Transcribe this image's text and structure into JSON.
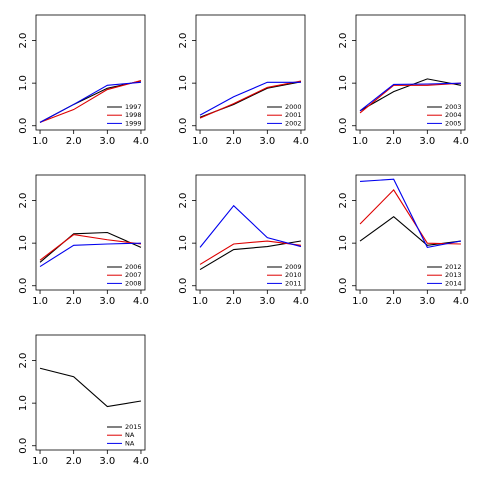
{
  "chart_data": [
    {
      "type": "line",
      "x": [
        1,
        2,
        3,
        4
      ],
      "xlim": [
        0.88,
        4.12
      ],
      "ylim": [
        -0.1,
        2.6
      ],
      "xticks": [
        {
          "value": 1,
          "label": "1.0"
        },
        {
          "value": 2,
          "label": "2.0"
        },
        {
          "value": 3,
          "label": "3.0"
        },
        {
          "value": 4,
          "label": "4.0"
        }
      ],
      "yticks": [
        {
          "value": 0,
          "label": "0.0"
        },
        {
          "value": 1,
          "label": "1.0"
        },
        {
          "value": 2,
          "label": "2.0"
        }
      ],
      "legend": "lower right",
      "series": [
        {
          "name": "1997",
          "color": "#000000",
          "values": [
            0.08,
            0.5,
            0.88,
            1.05
          ]
        },
        {
          "name": "1998",
          "color": "#dd0000",
          "values": [
            0.08,
            0.38,
            0.85,
            1.06
          ]
        },
        {
          "name": "1999",
          "color": "#0000ee",
          "values": [
            0.08,
            0.5,
            0.95,
            1.02
          ]
        }
      ]
    },
    {
      "type": "line",
      "x": [
        1,
        2,
        3,
        4
      ],
      "xlim": [
        0.88,
        4.12
      ],
      "ylim": [
        -0.1,
        2.6
      ],
      "xticks": [
        {
          "value": 1,
          "label": "1.0"
        },
        {
          "value": 2,
          "label": "2.0"
        },
        {
          "value": 3,
          "label": "3.0"
        },
        {
          "value": 4,
          "label": "4.0"
        }
      ],
      "yticks": [
        {
          "value": 0,
          "label": "0.0"
        },
        {
          "value": 1,
          "label": "1.0"
        },
        {
          "value": 2,
          "label": "2.0"
        }
      ],
      "legend": "lower right",
      "series": [
        {
          "name": "2000",
          "color": "#000000",
          "values": [
            0.2,
            0.5,
            0.88,
            1.03
          ]
        },
        {
          "name": "2001",
          "color": "#dd0000",
          "values": [
            0.18,
            0.52,
            0.9,
            1.05
          ]
        },
        {
          "name": "2002",
          "color": "#0000ee",
          "values": [
            0.25,
            0.68,
            1.02,
            1.02
          ]
        }
      ]
    },
    {
      "type": "line",
      "x": [
        1,
        2,
        3,
        4
      ],
      "xlim": [
        0.88,
        4.12
      ],
      "ylim": [
        -0.1,
        2.6
      ],
      "xticks": [
        {
          "value": 1,
          "label": "1.0"
        },
        {
          "value": 2,
          "label": "2.0"
        },
        {
          "value": 3,
          "label": "3.0"
        },
        {
          "value": 4,
          "label": "4.0"
        }
      ],
      "yticks": [
        {
          "value": 0,
          "label": "0.0"
        },
        {
          "value": 1,
          "label": "1.0"
        },
        {
          "value": 2,
          "label": "2.0"
        }
      ],
      "legend": "lower right",
      "series": [
        {
          "name": "2003",
          "color": "#000000",
          "values": [
            0.35,
            0.8,
            1.1,
            0.95
          ]
        },
        {
          "name": "2004",
          "color": "#dd0000",
          "values": [
            0.3,
            0.95,
            0.95,
            1.0
          ]
        },
        {
          "name": "2005",
          "color": "#0000ee",
          "values": [
            0.35,
            0.97,
            0.98,
            1.0
          ]
        }
      ]
    },
    {
      "type": "line",
      "x": [
        1,
        2,
        3,
        4
      ],
      "xlim": [
        0.88,
        4.12
      ],
      "ylim": [
        -0.1,
        2.6
      ],
      "xticks": [
        {
          "value": 1,
          "label": "1.0"
        },
        {
          "value": 2,
          "label": "2.0"
        },
        {
          "value": 3,
          "label": "3.0"
        },
        {
          "value": 4,
          "label": "4.0"
        }
      ],
      "yticks": [
        {
          "value": 0,
          "label": "0.0"
        },
        {
          "value": 1,
          "label": "1.0"
        },
        {
          "value": 2,
          "label": "2.0"
        }
      ],
      "legend": "lower right",
      "series": [
        {
          "name": "2006",
          "color": "#000000",
          "values": [
            0.55,
            1.22,
            1.25,
            0.9
          ]
        },
        {
          "name": "2007",
          "color": "#dd0000",
          "values": [
            0.6,
            1.2,
            1.08,
            0.98
          ]
        },
        {
          "name": "2008",
          "color": "#0000ee",
          "values": [
            0.45,
            0.95,
            0.98,
            1.0
          ]
        }
      ]
    },
    {
      "type": "line",
      "x": [
        1,
        2,
        3,
        4
      ],
      "xlim": [
        0.88,
        4.12
      ],
      "ylim": [
        -0.1,
        2.6
      ],
      "xticks": [
        {
          "value": 1,
          "label": "1.0"
        },
        {
          "value": 2,
          "label": "2.0"
        },
        {
          "value": 3,
          "label": "3.0"
        },
        {
          "value": 4,
          "label": "4.0"
        }
      ],
      "yticks": [
        {
          "value": 0,
          "label": "0.0"
        },
        {
          "value": 1,
          "label": "1.0"
        },
        {
          "value": 2,
          "label": "2.0"
        }
      ],
      "legend": "lower right",
      "series": [
        {
          "name": "2009",
          "color": "#000000",
          "values": [
            0.38,
            0.85,
            0.92,
            1.05
          ]
        },
        {
          "name": "2010",
          "color": "#dd0000",
          "values": [
            0.5,
            0.98,
            1.05,
            0.95
          ]
        },
        {
          "name": "2011",
          "color": "#0000ee",
          "values": [
            0.9,
            1.88,
            1.13,
            0.92
          ]
        }
      ]
    },
    {
      "type": "line",
      "x": [
        1,
        2,
        3,
        4
      ],
      "xlim": [
        0.88,
        4.12
      ],
      "ylim": [
        -0.1,
        2.6
      ],
      "xticks": [
        {
          "value": 1,
          "label": "1.0"
        },
        {
          "value": 2,
          "label": "2.0"
        },
        {
          "value": 3,
          "label": "3.0"
        },
        {
          "value": 4,
          "label": "4.0"
        }
      ],
      "yticks": [
        {
          "value": 0,
          "label": "0.0"
        },
        {
          "value": 1,
          "label": "1.0"
        },
        {
          "value": 2,
          "label": "2.0"
        }
      ],
      "legend": "lower right",
      "series": [
        {
          "name": "2012",
          "color": "#000000",
          "values": [
            1.05,
            1.62,
            0.95,
            1.05
          ]
        },
        {
          "name": "2013",
          "color": "#dd0000",
          "values": [
            1.45,
            2.25,
            1.0,
            0.98
          ]
        },
        {
          "name": "2014",
          "color": "#0000ee",
          "values": [
            2.45,
            2.5,
            0.9,
            1.05
          ]
        }
      ]
    },
    {
      "type": "line",
      "x": [
        1,
        2,
        3,
        4
      ],
      "xlim": [
        0.88,
        4.12
      ],
      "ylim": [
        -0.1,
        2.6
      ],
      "xticks": [
        {
          "value": 1,
          "label": "1.0"
        },
        {
          "value": 2,
          "label": "2.0"
        },
        {
          "value": 3,
          "label": "3.0"
        },
        {
          "value": 4,
          "label": "4.0"
        }
      ],
      "yticks": [
        {
          "value": 0,
          "label": "0.0"
        },
        {
          "value": 1,
          "label": "1.0"
        },
        {
          "value": 2,
          "label": "2.0"
        }
      ],
      "legend": "lower right",
      "series": [
        {
          "name": "2015",
          "color": "#000000",
          "values": [
            1.82,
            1.62,
            0.92,
            1.05
          ]
        },
        {
          "name": "NA",
          "color": "#dd0000",
          "values": [
            null,
            null,
            null,
            null
          ]
        },
        {
          "name": "NA",
          "color": "#0000ee",
          "values": [
            null,
            null,
            null,
            null
          ]
        }
      ]
    }
  ]
}
